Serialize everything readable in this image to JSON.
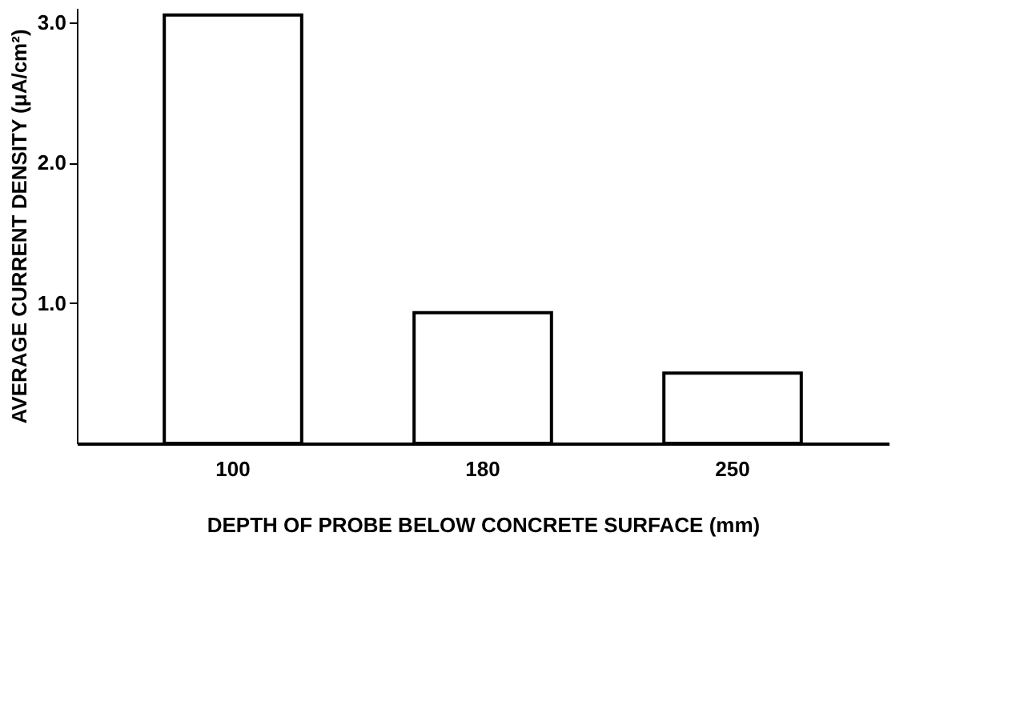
{
  "chart_data": {
    "type": "bar",
    "xlabel": "DEPTH OF PROBE BELOW CONCRETE SURFACE (mm)",
    "ylabel": "AVERAGE CURRENT DENSITY (μA/cm²)",
    "categories": [
      "100",
      "180",
      "250"
    ],
    "values": [
      3.05,
      0.93,
      0.5
    ],
    "color": "#ffffff",
    "ylim": [
      0,
      3.1
    ],
    "yticks": [
      {
        "value": 1,
        "label": "1.0"
      },
      {
        "value": 2,
        "label": "2.0"
      },
      {
        "value": 3,
        "label": "3.0"
      }
    ],
    "grid": false
  }
}
